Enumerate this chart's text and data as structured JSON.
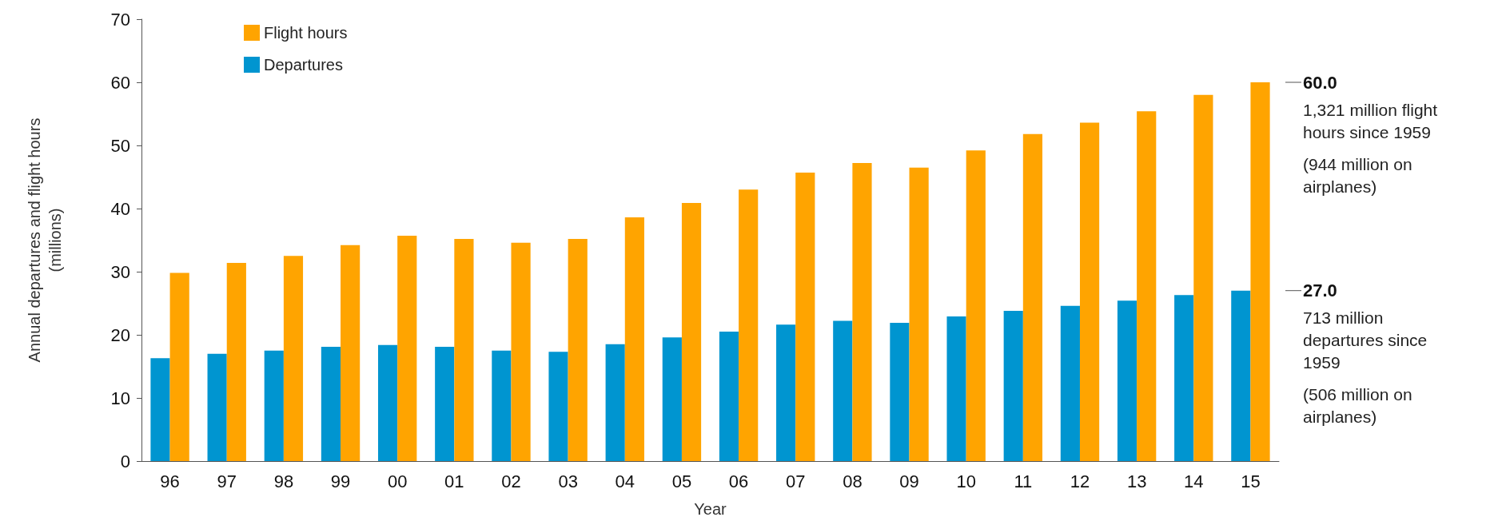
{
  "chart_data": {
    "type": "bar",
    "xlabel": "Year",
    "ylabel": "Annual departures and flight hours\n(millions)",
    "categories": [
      "96",
      "97",
      "98",
      "99",
      "00",
      "01",
      "02",
      "03",
      "04",
      "05",
      "06",
      "07",
      "08",
      "09",
      "10",
      "11",
      "12",
      "13",
      "14",
      "15"
    ],
    "series": [
      {
        "name": "Departures",
        "color": "#0095d0",
        "values": [
          16.3,
          17.0,
          17.5,
          18.1,
          18.4,
          18.1,
          17.5,
          17.3,
          18.5,
          19.6,
          20.5,
          21.6,
          22.2,
          21.9,
          22.9,
          23.8,
          24.6,
          25.4,
          26.3,
          27.0
        ]
      },
      {
        "name": "Flight hours",
        "color": "#ffa400",
        "values": [
          29.8,
          31.4,
          32.5,
          34.2,
          35.7,
          35.2,
          34.6,
          35.2,
          38.6,
          40.9,
          43.0,
          45.7,
          47.2,
          46.5,
          49.2,
          51.8,
          53.6,
          55.4,
          58.0,
          60.0
        ]
      }
    ],
    "ylim": [
      0,
      70
    ],
    "yticks": [
      0,
      10,
      20,
      30,
      40,
      50,
      60,
      70
    ],
    "grid": false,
    "legend": "top left",
    "annotations": [
      {
        "text": "60.0",
        "x": "15",
        "y": 60.0
      },
      "1,321 million flight\nhours since 1959",
      "(944 million on\nairplanes)",
      {
        "text": "27.0",
        "x": "15",
        "y": 27.0
      },
      "713 million\ndepartures since\n1959",
      "(506 million on\nairplanes)"
    ]
  }
}
